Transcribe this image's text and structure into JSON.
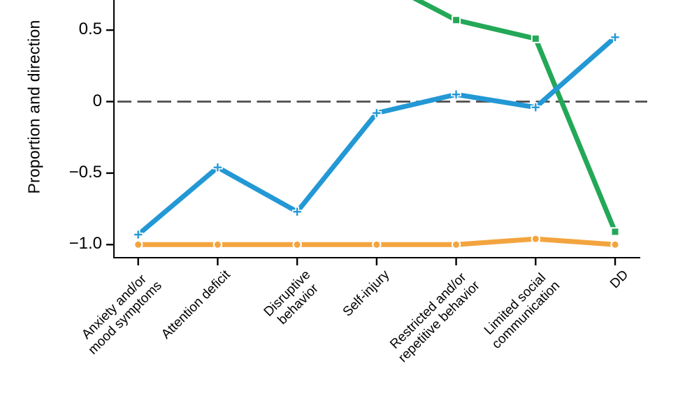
{
  "figure": {
    "background": "#ffffff"
  },
  "chart_data": {
    "type": "line",
    "title": "",
    "xlabel": "",
    "ylabel": "Proportion and direction",
    "categories": [
      "Anxiety and/or\nmood symptoms",
      "Attention deficit",
      "Disruptive\nbehavior",
      "Self-injury",
      "Restricted and/or\nrepetitive behavior",
      "Limited social\ncommunication",
      "DD"
    ],
    "yticks": [
      {
        "label": "0.5",
        "value": 0.5
      },
      {
        "label": "0",
        "value": 0
      },
      {
        "label": "−0.5",
        "value": -0.5
      },
      {
        "label": "−1.0",
        "value": -1.0
      }
    ],
    "ylim_visible": [
      -1.09,
      0.71
    ],
    "top_cropped": true,
    "grid": false,
    "legend": "none",
    "zero_line": {
      "style": "dashed",
      "value": 0,
      "color": "#4d4d4d"
    },
    "axis_color": "#000000",
    "series": [
      {
        "id": "orange-line",
        "color": "#f3a43e",
        "marker": "circle",
        "values": [
          -1.0,
          -1.0,
          -1.0,
          -1.0,
          -1.0,
          -0.96,
          -1.0
        ]
      },
      {
        "id": "green-line",
        "color": "#23a857",
        "marker": "square",
        "enters_from_top": true,
        "entry_anchor": {
          "index": 3,
          "value": 0.86
        },
        "values": [
          null,
          null,
          null,
          null,
          0.57,
          0.44,
          -0.91
        ]
      },
      {
        "id": "blue-line",
        "color": "#2398d5",
        "marker": "plus",
        "values": [
          -0.93,
          -0.46,
          -0.77,
          -0.08,
          0.05,
          -0.04,
          0.45
        ]
      }
    ]
  }
}
